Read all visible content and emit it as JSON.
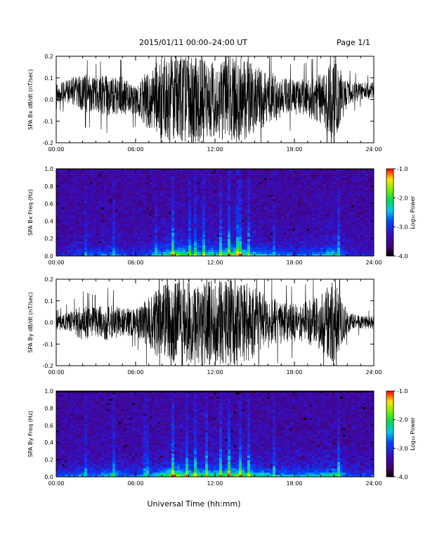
{
  "header": {
    "title": "2015/01/11  00:00–24:00 UT",
    "page": "Page 1/1"
  },
  "x_axis": {
    "title": "Universal Time (hh:mm)",
    "range_hours": [
      0,
      24
    ],
    "ticks": [
      0,
      6,
      12,
      18,
      24
    ],
    "tick_labels": [
      "00:00",
      "06:00",
      "12:00",
      "18:00",
      "24:00"
    ]
  },
  "chart_data": [
    {
      "type": "line",
      "ylabel": "SPA Bx dB/dt (nT/sec)",
      "ylim": [
        -0.2,
        0.2
      ],
      "yticks": [
        -0.2,
        -0.1,
        0.0,
        0.1,
        0.2
      ],
      "ytick_labels": [
        "-0.2",
        "-0.1",
        "0.0",
        "0.1",
        "0.2"
      ],
      "xlim": [
        0,
        24
      ],
      "color": "#000000",
      "series": [
        {
          "x_hours": [
            0,
            1,
            2,
            3,
            4,
            5,
            6,
            7,
            8,
            9,
            10,
            11,
            12,
            13,
            14,
            15,
            16,
            17,
            18,
            19,
            20,
            21,
            22,
            23,
            24
          ],
          "amplitude_nT_per_s": [
            0.04,
            0.06,
            0.09,
            0.08,
            0.1,
            0.09,
            0.07,
            0.14,
            0.2,
            0.2,
            0.2,
            0.2,
            0.17,
            0.2,
            0.2,
            0.16,
            0.12,
            0.1,
            0.08,
            0.09,
            0.12,
            0.2,
            0.06,
            0.04,
            0.04
          ],
          "center_offset_nT_per_s": [
            0.03,
            0.04,
            0.03,
            0.02,
            0.02,
            0.02,
            0.0,
            0.0,
            0.0,
            0.0,
            0.0,
            0.0,
            0.0,
            0.0,
            0.0,
            0.0,
            0.01,
            0.01,
            0.01,
            0.01,
            0.0,
            0.0,
            0.03,
            0.04,
            0.04
          ]
        }
      ]
    },
    {
      "type": "heatmap",
      "ylabel": "SPA Bx Freq (Hz)",
      "ylim": [
        0.0,
        1.0
      ],
      "yticks": [
        0.0,
        0.2,
        0.4,
        0.6,
        0.8,
        1.0
      ],
      "ytick_labels": [
        "0.0",
        "0.2",
        "0.4",
        "0.6",
        "0.8",
        "1.0"
      ],
      "xlim": [
        0,
        24
      ],
      "colorbar": {
        "label": "Log₁₀ Power",
        "range": [
          -4.0,
          -1.0
        ],
        "ticks": [
          -1.0,
          -2.0,
          -3.0,
          -4.0
        ],
        "tick_labels": [
          "-1.0",
          "-2.0",
          "-3.0",
          "-4.0"
        ]
      },
      "activity_hours": [
        0,
        1,
        2,
        3,
        4,
        5,
        6,
        7,
        8,
        9,
        10,
        11,
        12,
        13,
        14,
        15,
        16,
        17,
        18,
        19,
        20,
        21,
        22,
        23,
        24
      ],
      "activity": [
        0.15,
        0.25,
        0.35,
        0.3,
        0.45,
        0.3,
        0.25,
        0.35,
        0.55,
        0.85,
        0.6,
        0.65,
        0.6,
        0.8,
        0.75,
        0.55,
        0.45,
        0.4,
        0.35,
        0.4,
        0.45,
        0.7,
        0.25,
        0.2,
        0.2
      ],
      "bright_streak_hours": [
        2.2,
        4.3,
        7.6,
        8.8,
        10.1,
        10.6,
        11.2,
        12.5,
        13.1,
        13.8,
        14.5,
        16.5,
        21.4
      ]
    },
    {
      "type": "line",
      "ylabel": "SPA By dB/dt (nT/sec)",
      "ylim": [
        -0.2,
        0.2
      ],
      "yticks": [
        -0.2,
        -0.1,
        0.0,
        0.1,
        0.2
      ],
      "ytick_labels": [
        "-0.2",
        "-0.1",
        "0.0",
        "0.1",
        "0.2"
      ],
      "xlim": [
        0,
        24
      ],
      "color": "#000000",
      "series": [
        {
          "x_hours": [
            0,
            1,
            2,
            3,
            4,
            5,
            6,
            7,
            8,
            9,
            10,
            11,
            12,
            13,
            14,
            15,
            16,
            17,
            18,
            19,
            20,
            21,
            22,
            23,
            24
          ],
          "amplitude_nT_per_s": [
            0.03,
            0.05,
            0.08,
            0.07,
            0.09,
            0.07,
            0.06,
            0.12,
            0.18,
            0.2,
            0.2,
            0.2,
            0.2,
            0.2,
            0.2,
            0.16,
            0.12,
            0.1,
            0.09,
            0.1,
            0.13,
            0.2,
            0.05,
            0.03,
            0.03
          ],
          "center_offset_nT_per_s": [
            0.0,
            0.0,
            0.0,
            0.0,
            0.0,
            0.0,
            0.0,
            0.0,
            0.0,
            0.0,
            0.0,
            0.0,
            0.0,
            0.0,
            0.0,
            0.0,
            0.0,
            0.0,
            0.0,
            0.0,
            0.0,
            0.0,
            0.0,
            0.0,
            0.0
          ]
        }
      ]
    },
    {
      "type": "heatmap",
      "ylabel": "SPA By Freq (Hz)",
      "ylim": [
        0.0,
        1.0
      ],
      "yticks": [
        0.0,
        0.2,
        0.4,
        0.6,
        0.8,
        1.0
      ],
      "ytick_labels": [
        "0.0",
        "0.2",
        "0.4",
        "0.6",
        "0.8",
        "1.0"
      ],
      "xlim": [
        0,
        24
      ],
      "colorbar": {
        "label": "Log₁₀ Power",
        "range": [
          -4.0,
          -1.0
        ],
        "ticks": [
          -1.0,
          -2.0,
          -3.0,
          -4.0
        ],
        "tick_labels": [
          "-1.0",
          "-2.0",
          "-3.0",
          "-4.0"
        ]
      },
      "activity_hours": [
        0,
        1,
        2,
        3,
        4,
        5,
        6,
        7,
        8,
        9,
        10,
        11,
        12,
        13,
        14,
        15,
        16,
        17,
        18,
        19,
        20,
        21,
        22,
        23,
        24
      ],
      "activity": [
        0.25,
        0.35,
        0.45,
        0.4,
        0.55,
        0.4,
        0.35,
        0.45,
        0.65,
        0.9,
        0.7,
        0.75,
        0.7,
        0.85,
        0.8,
        0.65,
        0.55,
        0.5,
        0.45,
        0.5,
        0.55,
        0.75,
        0.35,
        0.3,
        0.3
      ],
      "bright_streak_hours": [
        2.2,
        4.3,
        6.8,
        8.8,
        9.9,
        10.6,
        11.3,
        12.4,
        13.1,
        13.9,
        14.6,
        16.5,
        21.3
      ]
    }
  ]
}
